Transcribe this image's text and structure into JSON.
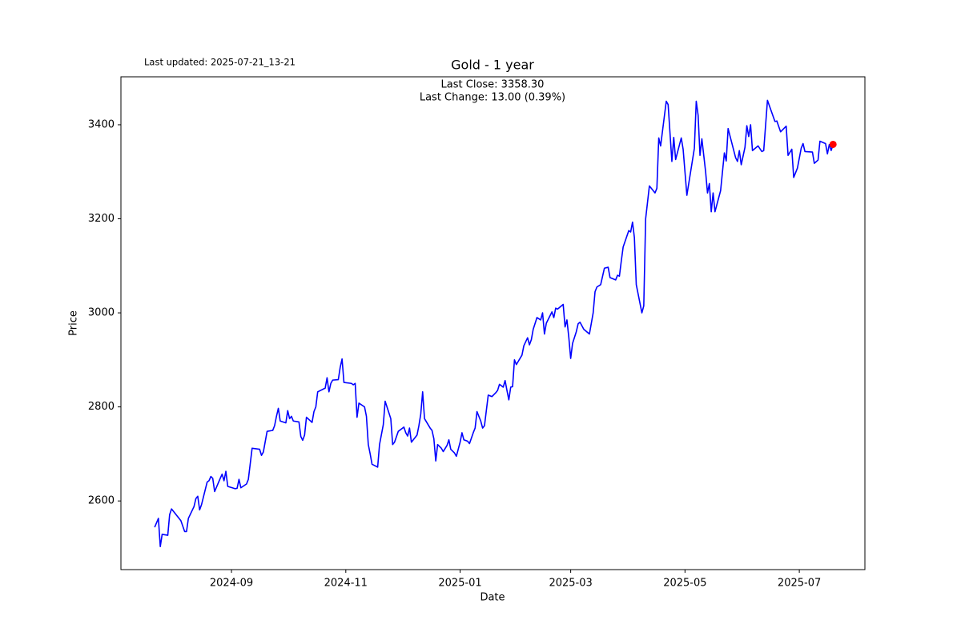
{
  "chart_data": {
    "type": "line",
    "title": "Gold - 1 year",
    "subtitle": "Last updated: 2025-07-21_13-21",
    "annotations": [
      "Last Close: 3358.30",
      "Last Change: 13.00 (0.39%)"
    ],
    "x_label": "Date",
    "y_label": "Price",
    "xlim": [
      "2024-07-04",
      "2025-08-05"
    ],
    "xticks": [
      {
        "value": "2024-09-01",
        "label": "2024-09"
      },
      {
        "value": "2024-11-01",
        "label": "2024-11"
      },
      {
        "value": "2025-01-01",
        "label": "2025-01"
      },
      {
        "value": "2025-03-01",
        "label": "2025-03"
      },
      {
        "value": "2025-05-01",
        "label": "2025-05"
      },
      {
        "value": "2025-07-01",
        "label": "2025-07"
      }
    ],
    "ylim": [
      2454,
      3502
    ],
    "yticks": [
      2600,
      2800,
      3000,
      3200,
      3400
    ],
    "grid": false,
    "marker_color": "#ff0000",
    "x": [
      "2024-07-22",
      "2024-07-24",
      "2024-07-25",
      "2024-07-26",
      "2024-07-29",
      "2024-07-30",
      "2024-07-31",
      "2024-08-05",
      "2024-08-07",
      "2024-08-08",
      "2024-08-09",
      "2024-08-12",
      "2024-08-13",
      "2024-08-14",
      "2024-08-15",
      "2024-08-16",
      "2024-08-19",
      "2024-08-20",
      "2024-08-21",
      "2024-08-22",
      "2024-08-23",
      "2024-08-26",
      "2024-08-27",
      "2024-08-28",
      "2024-08-29",
      "2024-08-30",
      "2024-09-03",
      "2024-09-04",
      "2024-09-05",
      "2024-09-06",
      "2024-09-09",
      "2024-09-10",
      "2024-09-12",
      "2024-09-16",
      "2024-09-17",
      "2024-09-18",
      "2024-09-20",
      "2024-09-23",
      "2024-09-24",
      "2024-09-25",
      "2024-09-26",
      "2024-09-27",
      "2024-09-30",
      "2024-10-01",
      "2024-10-02",
      "2024-10-03",
      "2024-10-04",
      "2024-10-07",
      "2024-10-08",
      "2024-10-09",
      "2024-10-10",
      "2024-10-11",
      "2024-10-14",
      "2024-10-15",
      "2024-10-16",
      "2024-10-17",
      "2024-10-21",
      "2024-10-22",
      "2024-10-23",
      "2024-10-24",
      "2024-10-25",
      "2024-10-28",
      "2024-10-29",
      "2024-10-30",
      "2024-10-31",
      "2024-11-04",
      "2024-11-05",
      "2024-11-06",
      "2024-11-07",
      "2024-11-08",
      "2024-11-11",
      "2024-11-12",
      "2024-11-13",
      "2024-11-14",
      "2024-11-15",
      "2024-11-18",
      "2024-11-19",
      "2024-11-21",
      "2024-11-22",
      "2024-11-25",
      "2024-11-26",
      "2024-11-27",
      "2024-11-29",
      "2024-12-02",
      "2024-12-03",
      "2024-12-04",
      "2024-12-05",
      "2024-12-06",
      "2024-12-09",
      "2024-12-10",
      "2024-12-11",
      "2024-12-12",
      "2024-12-13",
      "2024-12-16",
      "2024-12-17",
      "2024-12-18",
      "2024-12-19",
      "2024-12-20",
      "2024-12-22",
      "2024-12-23",
      "2024-12-25",
      "2024-12-26",
      "2024-12-27",
      "2024-12-29",
      "2024-12-30",
      "2025-01-01",
      "2025-01-02",
      "2025-01-03",
      "2025-01-05",
      "2025-01-06",
      "2025-01-08",
      "2025-01-09",
      "2025-01-10",
      "2025-01-12",
      "2025-01-13",
      "2025-01-14",
      "2025-01-16",
      "2025-01-18",
      "2025-01-20",
      "2025-01-21",
      "2025-01-22",
      "2025-01-24",
      "2025-01-25",
      "2025-01-26",
      "2025-01-27",
      "2025-01-28",
      "2025-01-29",
      "2025-01-30",
      "2025-01-31",
      "2025-02-03",
      "2025-02-04",
      "2025-02-06",
      "2025-02-07",
      "2025-02-08",
      "2025-02-09",
      "2025-02-11",
      "2025-02-13",
      "2025-02-14",
      "2025-02-15",
      "2025-02-16",
      "2025-02-19",
      "2025-02-20",
      "2025-02-21",
      "2025-02-22",
      "2025-02-25",
      "2025-02-26",
      "2025-02-27",
      "2025-02-28",
      "2025-03-01",
      "2025-03-02",
      "2025-03-04",
      "2025-03-05",
      "2025-03-06",
      "2025-03-08",
      "2025-03-11",
      "2025-03-13",
      "2025-03-14",
      "2025-03-15",
      "2025-03-17",
      "2025-03-19",
      "2025-03-21",
      "2025-03-22",
      "2025-03-25",
      "2025-03-26",
      "2025-03-27",
      "2025-03-28",
      "2025-03-29",
      "2025-04-01",
      "2025-04-02",
      "2025-04-03",
      "2025-04-04",
      "2025-04-05",
      "2025-04-08",
      "2025-04-09",
      "2025-04-10",
      "2025-04-12",
      "2025-04-15",
      "2025-04-16",
      "2025-04-17",
      "2025-04-18",
      "2025-04-21",
      "2025-04-22",
      "2025-04-24",
      "2025-04-25",
      "2025-04-26",
      "2025-04-29",
      "2025-04-30",
      "2025-05-02",
      "2025-05-06",
      "2025-05-07",
      "2025-05-08",
      "2025-05-09",
      "2025-05-10",
      "2025-05-12",
      "2025-05-13",
      "2025-05-14",
      "2025-05-15",
      "2025-05-16",
      "2025-05-17",
      "2025-05-20",
      "2025-05-22",
      "2025-05-23",
      "2025-05-24",
      "2025-05-28",
      "2025-05-29",
      "2025-05-30",
      "2025-05-31",
      "2025-06-02",
      "2025-06-03",
      "2025-06-04",
      "2025-06-05",
      "2025-06-06",
      "2025-06-09",
      "2025-06-11",
      "2025-06-12",
      "2025-06-14",
      "2025-06-18",
      "2025-06-19",
      "2025-06-21",
      "2025-06-24",
      "2025-06-25",
      "2025-06-27",
      "2025-06-28",
      "2025-06-30",
      "2025-07-02",
      "2025-07-03",
      "2025-07-04",
      "2025-07-08",
      "2025-07-09",
      "2025-07-11",
      "2025-07-12",
      "2025-07-15",
      "2025-07-16",
      "2025-07-17",
      "2025-07-18",
      "2025-07-19"
    ],
    "series": [
      {
        "name": "Gold",
        "color": "#0000ff",
        "values": [
          2544,
          2563,
          2503,
          2529,
          2527,
          2571,
          2583,
          2558,
          2535,
          2535,
          2563,
          2588,
          2605,
          2610,
          2581,
          2592,
          2640,
          2643,
          2652,
          2648,
          2620,
          2648,
          2657,
          2643,
          2663,
          2631,
          2626,
          2627,
          2646,
          2628,
          2636,
          2646,
          2712,
          2710,
          2697,
          2704,
          2748,
          2750,
          2760,
          2780,
          2797,
          2770,
          2766,
          2792,
          2775,
          2780,
          2770,
          2768,
          2737,
          2729,
          2740,
          2778,
          2767,
          2790,
          2800,
          2832,
          2840,
          2862,
          2832,
          2850,
          2857,
          2858,
          2884,
          2902,
          2852,
          2850,
          2847,
          2850,
          2778,
          2808,
          2800,
          2780,
          2720,
          2700,
          2678,
          2672,
          2720,
          2762,
          2812,
          2775,
          2720,
          2725,
          2748,
          2757,
          2745,
          2738,
          2755,
          2725,
          2740,
          2760,
          2785,
          2832,
          2775,
          2755,
          2750,
          2732,
          2685,
          2720,
          2712,
          2705,
          2718,
          2730,
          2710,
          2702,
          2695,
          2725,
          2745,
          2730,
          2727,
          2722,
          2745,
          2755,
          2790,
          2770,
          2755,
          2760,
          2825,
          2822,
          2830,
          2835,
          2848,
          2842,
          2856,
          2835,
          2815,
          2842,
          2843,
          2900,
          2890,
          2910,
          2930,
          2947,
          2932,
          2943,
          2965,
          2990,
          2985,
          3000,
          2955,
          2978,
          3002,
          2990,
          3010,
          3008,
          3018,
          2970,
          2985,
          2948,
          2903,
          2935,
          2960,
          2977,
          2980,
          2965,
          2955,
          3000,
          3045,
          3055,
          3060,
          3095,
          3097,
          3075,
          3070,
          3080,
          3078,
          3110,
          3140,
          3175,
          3172,
          3193,
          3160,
          3060,
          3000,
          3015,
          3200,
          3270,
          3255,
          3265,
          3372,
          3355,
          3450,
          3443,
          3322,
          3373,
          3326,
          3372,
          3348,
          3250,
          3350,
          3450,
          3420,
          3335,
          3370,
          3300,
          3255,
          3275,
          3215,
          3255,
          3215,
          3260,
          3340,
          3323,
          3392,
          3330,
          3322,
          3345,
          3315,
          3352,
          3398,
          3375,
          3400,
          3345,
          3355,
          3343,
          3345,
          3452,
          3407,
          3408,
          3385,
          3397,
          3335,
          3348,
          3288,
          3308,
          3350,
          3360,
          3343,
          3342,
          3318,
          3325,
          3365,
          3360,
          3338,
          3358,
          3345.3,
          3358.3
        ]
      }
    ]
  }
}
